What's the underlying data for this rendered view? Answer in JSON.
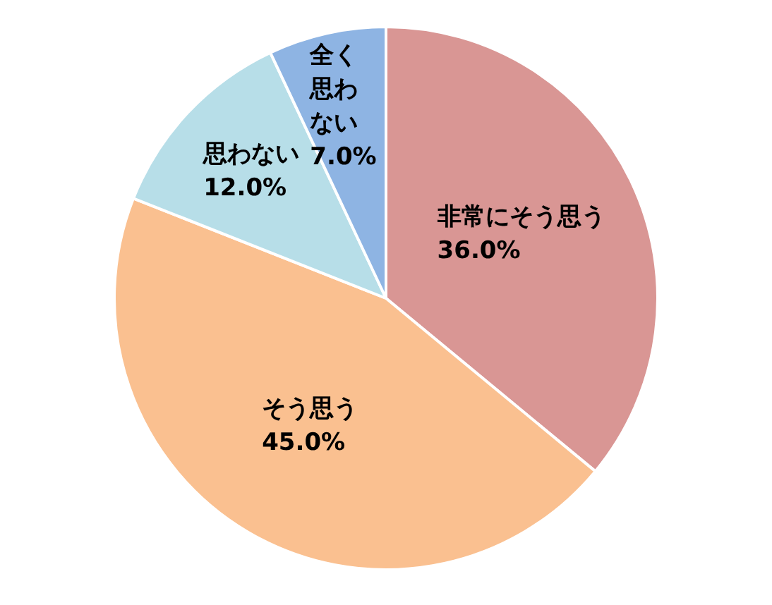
{
  "chart_data": {
    "type": "pie",
    "categories": [
      "非常にそう思う",
      "そう思う",
      "思わない",
      "全く思わない"
    ],
    "values": [
      36.0,
      45.0,
      12.0,
      7.0
    ],
    "colors": [
      "#d99694",
      "#fac090",
      "#b7dee8",
      "#8eb4e3"
    ],
    "value_labels": [
      "36.0%",
      "45.0%",
      "12.0%",
      "7.0%"
    ],
    "legend": false
  }
}
